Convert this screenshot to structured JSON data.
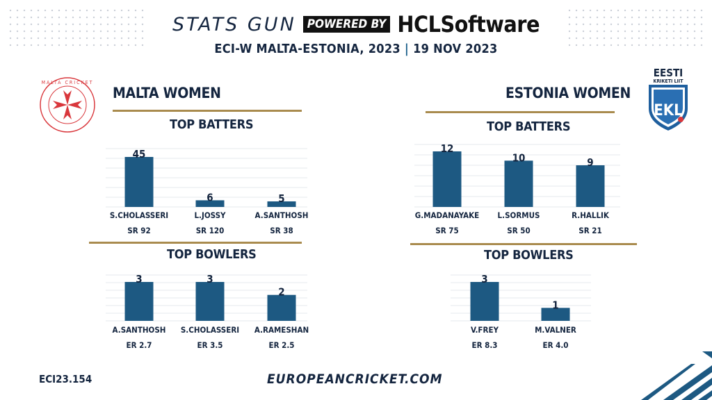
{
  "header": {
    "stats_gun": "STATS GUN",
    "powered_by": "POWERED BY",
    "sponsor": "HCLSoftware",
    "event": "ECI-W MALTA-ESTONIA, 2023",
    "separator": "|",
    "date": "19 NOV 2023"
  },
  "teams": {
    "left": {
      "name": "MALTA WOMEN",
      "logo_text": "MALTA CRICKET"
    },
    "right": {
      "name": "ESTONIA WOMEN",
      "logo_text_top": "EESTI",
      "logo_text_sub": "KRIKETI LIIT",
      "logo_mark": "EKL"
    }
  },
  "colors": {
    "bar": "#1d5982",
    "gold": "#a98b4e",
    "text": "#14253f",
    "malta_red": "#d9373c"
  },
  "chart_data": [
    {
      "type": "bar",
      "id": "malta_batters",
      "title": "TOP BATTERS",
      "categories": [
        "S.CHOLASSERI",
        "L.JOSSY",
        "A.SANTHOSH"
      ],
      "values": [
        45,
        6,
        5
      ],
      "stats": [
        "SR 92",
        "SR 120",
        "SR 38"
      ],
      "ylim": [
        0,
        50
      ],
      "grid": true
    },
    {
      "type": "bar",
      "id": "malta_bowlers",
      "title": "TOP BOWLERS",
      "categories": [
        "A.SANTHOSH",
        "S.CHOLASSERI",
        "A.RAMESHAN"
      ],
      "values": [
        3,
        3,
        2
      ],
      "stats": [
        "ER 2.7",
        "ER 3.5",
        "ER 2.5"
      ],
      "ylim": [
        0,
        3.3
      ],
      "grid": true
    },
    {
      "type": "bar",
      "id": "estonia_batters",
      "title": "TOP BATTERS",
      "categories": [
        "G.MADANAYAKE",
        "L.SORMUS",
        "R.HALLIK"
      ],
      "values": [
        12,
        10,
        9
      ],
      "stats": [
        "SR 75",
        "SR 50",
        "SR 21"
      ],
      "ylim": [
        0,
        13
      ],
      "grid": true
    },
    {
      "type": "bar",
      "id": "estonia_bowlers",
      "title": "TOP BOWLERS",
      "categories": [
        "V.FREY",
        "M.VALNER"
      ],
      "values": [
        3,
        1
      ],
      "stats": [
        "ER 8.3",
        "ER 4.0"
      ],
      "ylim": [
        0,
        3.3
      ],
      "grid": true
    }
  ],
  "footer": {
    "code": "ECI23.154",
    "site": "EUROPEANCRICKET.COM"
  }
}
